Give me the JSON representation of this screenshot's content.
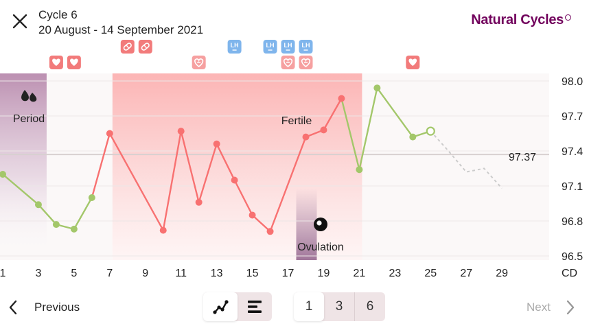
{
  "header": {
    "title": "Cycle 6",
    "dates": "20 August - 14 September 2021",
    "brand": "Natural Cycles"
  },
  "chart_data": {
    "type": "line",
    "x_unit_label": "CD",
    "x_ticks": [
      1,
      3,
      5,
      7,
      9,
      11,
      13,
      15,
      17,
      19,
      21,
      23,
      25,
      27,
      29
    ],
    "y_ticks": [
      98.0,
      97.7,
      97.4,
      97.1,
      96.8,
      96.5
    ],
    "ylim": [
      96.5,
      98.0
    ],
    "cover_line": 97.37,
    "cover_line_label": "97.37",
    "period_label": "Period",
    "fertile_label": "Fertile",
    "ovulation_label": "Ovulation",
    "period_range": [
      1,
      4
    ],
    "fertile_range": [
      7,
      21
    ],
    "ovulation_day": 18,
    "temperatures": [
      {
        "cd": 1,
        "temp": 97.2,
        "status": "green"
      },
      {
        "cd": 3,
        "temp": 96.94,
        "status": "green"
      },
      {
        "cd": 4,
        "temp": 96.77,
        "status": "green"
      },
      {
        "cd": 5,
        "temp": 96.73,
        "status": "green"
      },
      {
        "cd": 6,
        "temp": 97.0,
        "status": "green"
      },
      {
        "cd": 7,
        "temp": 97.55,
        "status": "red"
      },
      {
        "cd": 10,
        "temp": 96.72,
        "status": "red"
      },
      {
        "cd": 11,
        "temp": 97.57,
        "status": "red"
      },
      {
        "cd": 12,
        "temp": 96.96,
        "status": "red"
      },
      {
        "cd": 13,
        "temp": 97.46,
        "status": "red"
      },
      {
        "cd": 14,
        "temp": 97.15,
        "status": "red"
      },
      {
        "cd": 15,
        "temp": 96.85,
        "status": "red"
      },
      {
        "cd": 16,
        "temp": 96.71,
        "status": "red"
      },
      {
        "cd": 18,
        "temp": 97.52,
        "status": "red"
      },
      {
        "cd": 19,
        "temp": 97.58,
        "status": "red"
      },
      {
        "cd": 20,
        "temp": 97.85,
        "status": "red"
      },
      {
        "cd": 21,
        "temp": 97.24,
        "status": "green"
      },
      {
        "cd": 22,
        "temp": 97.94,
        "status": "green"
      },
      {
        "cd": 24,
        "temp": 97.52,
        "status": "green"
      },
      {
        "cd": 25,
        "temp": 97.57,
        "status": "green",
        "hollow": true
      }
    ],
    "prediction": [
      {
        "cd": 25,
        "temp": 97.57
      },
      {
        "cd": 26,
        "temp": 97.4
      },
      {
        "cd": 27,
        "temp": 97.22
      },
      {
        "cd": 28,
        "temp": 97.25
      },
      {
        "cd": 29,
        "temp": 97.08
      }
    ],
    "markers": [
      {
        "cd": 4,
        "row": 3,
        "kind": "heart-icon",
        "color": "#f27b7b"
      },
      {
        "cd": 5,
        "row": 3,
        "kind": "heart-icon",
        "color": "#f27b7b"
      },
      {
        "cd": 8,
        "row": 1,
        "kind": "pill-icon",
        "color": "#f27b7b"
      },
      {
        "cd": 9,
        "row": 1,
        "kind": "pill-icon",
        "color": "#f27b7b"
      },
      {
        "cd": 12,
        "row": 3,
        "kind": "heart-shield-icon",
        "color": "#f6a0a0"
      },
      {
        "cd": 14,
        "row": 1,
        "kind": "lh-test-icon",
        "label": "LH",
        "color": "#7fb5ec"
      },
      {
        "cd": 16,
        "row": 1,
        "kind": "lh-test-icon",
        "label": "LH",
        "color": "#7fb5ec"
      },
      {
        "cd": 17,
        "row": 1,
        "kind": "lh-test-icon",
        "label": "LH",
        "color": "#7fb5ec"
      },
      {
        "cd": 18,
        "row": 1,
        "kind": "lh-test-icon",
        "label": "LH",
        "color": "#7fb5ec"
      },
      {
        "cd": 17,
        "row": 3,
        "kind": "heart-shield-icon",
        "color": "#f6a0a0"
      },
      {
        "cd": 18,
        "row": 3,
        "kind": "heart-shield-icon",
        "color": "#f6a0a0"
      },
      {
        "cd": 24,
        "row": 3,
        "kind": "heart-icon",
        "color": "#f27b7b"
      }
    ],
    "colors": {
      "fertile": "#f87171",
      "safe": "#a3c76a",
      "period": "#b88aad",
      "ovulation": "#a1769a",
      "cover_line": "#d8d0d0",
      "prediction": "#cccccc"
    }
  },
  "nav": {
    "previous": "Previous",
    "next": "Next"
  },
  "view_toggle": {
    "chart_icon": "line-chart-icon",
    "list_icon": "list-icon",
    "active": "chart"
  },
  "zoom": {
    "options": [
      "1",
      "3",
      "6"
    ],
    "active": "1"
  }
}
